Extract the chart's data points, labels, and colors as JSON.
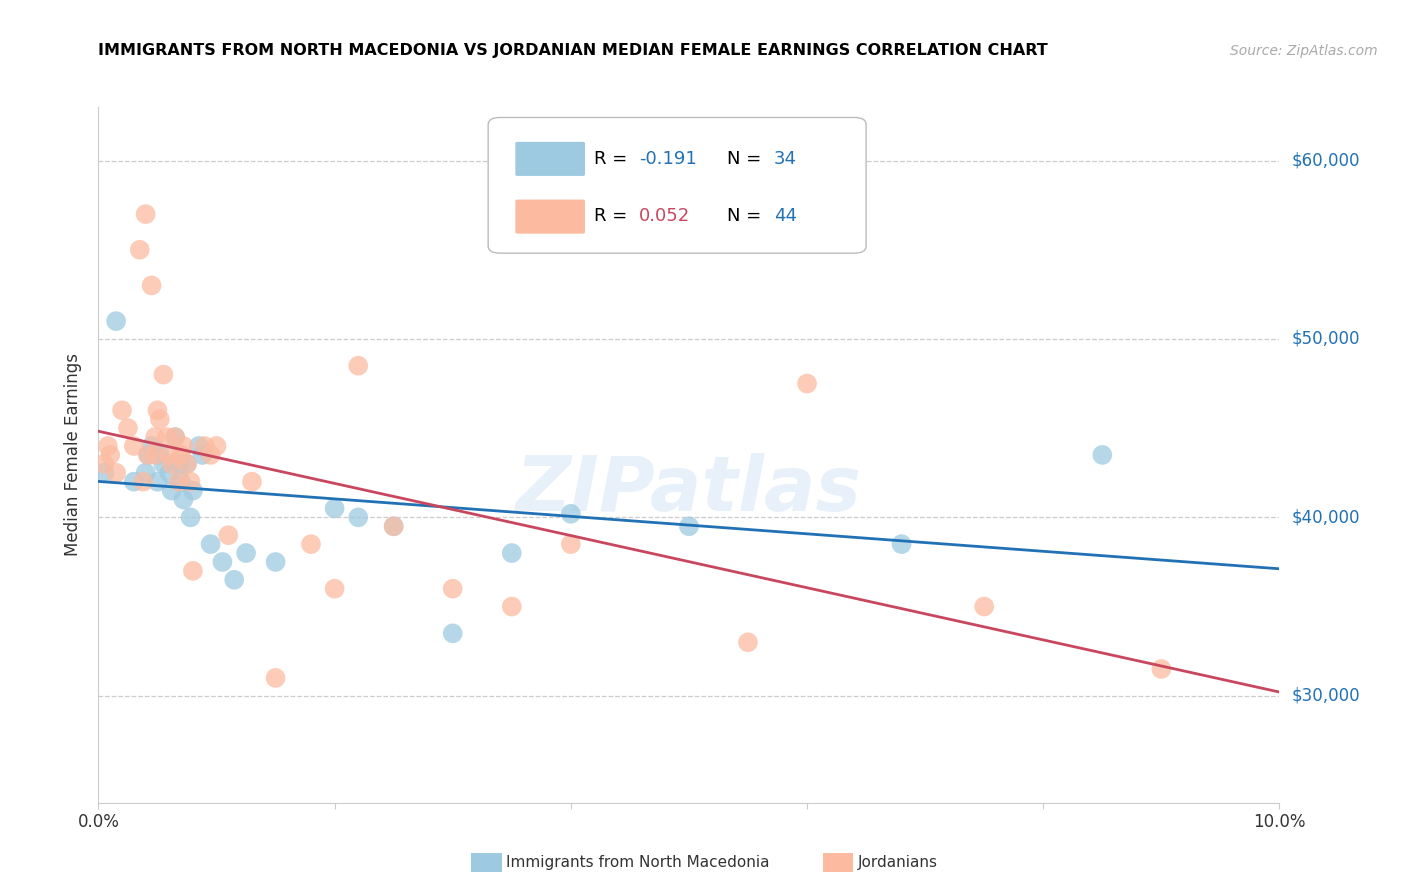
{
  "title": "IMMIGRANTS FROM NORTH MACEDONIA VS JORDANIAN MEDIAN FEMALE EARNINGS CORRELATION CHART",
  "source": "Source: ZipAtlas.com",
  "ylabel": "Median Female Earnings",
  "y_ticks": [
    30000,
    40000,
    50000,
    60000
  ],
  "y_tick_labels": [
    "$30,000",
    "$40,000",
    "$50,000",
    "$60,000"
  ],
  "x_min": 0.0,
  "x_max": 10.0,
  "y_min": 24000,
  "y_max": 63000,
  "blue_R": -0.191,
  "blue_N": 34,
  "pink_R": 0.052,
  "pink_N": 44,
  "blue_dot_color": "#9ecae1",
  "pink_dot_color": "#fcbba1",
  "blue_line_color": "#2171b5",
  "pink_line_color": "#c9475e",
  "watermark": "ZIPatlas",
  "blue_scatter_x": [
    0.05,
    0.15,
    0.4,
    0.42,
    0.45,
    0.5,
    0.52,
    0.55,
    0.6,
    0.62,
    0.65,
    0.68,
    0.7,
    0.72,
    0.75,
    0.78,
    0.8,
    0.85,
    0.88,
    0.95,
    1.05,
    1.15,
    1.25,
    1.5,
    2.0,
    2.2,
    2.5,
    3.0,
    3.5,
    4.0,
    5.0,
    6.8,
    8.5,
    0.3
  ],
  "blue_scatter_y": [
    42500,
    51000,
    42500,
    43500,
    44000,
    42000,
    43500,
    43000,
    42500,
    41500,
    44500,
    43000,
    42000,
    41000,
    43000,
    40000,
    41500,
    44000,
    43500,
    38500,
    37500,
    36500,
    38000,
    37500,
    40500,
    40000,
    39500,
    33500,
    38000,
    40200,
    39500,
    38500,
    43500,
    42000
  ],
  "pink_scatter_x": [
    0.05,
    0.08,
    0.1,
    0.15,
    0.2,
    0.25,
    0.3,
    0.35,
    0.38,
    0.4,
    0.45,
    0.48,
    0.5,
    0.52,
    0.55,
    0.58,
    0.6,
    0.62,
    0.65,
    0.68,
    0.7,
    0.72,
    0.75,
    0.78,
    0.8,
    0.9,
    0.95,
    1.0,
    1.1,
    1.3,
    1.5,
    1.8,
    2.0,
    2.2,
    2.5,
    3.0,
    3.5,
    4.0,
    5.5,
    6.0,
    7.5,
    9.0,
    0.42,
    0.48
  ],
  "pink_scatter_y": [
    43000,
    44000,
    43500,
    42500,
    46000,
    45000,
    44000,
    55000,
    42000,
    57000,
    53000,
    43500,
    46000,
    45500,
    48000,
    44500,
    43500,
    43000,
    44500,
    42000,
    43500,
    44000,
    43000,
    42000,
    37000,
    44000,
    43500,
    44000,
    39000,
    42000,
    31000,
    38500,
    36000,
    48500,
    39500,
    36000,
    35000,
    38500,
    33000,
    47500,
    35000,
    31500,
    43500,
    44500
  ]
}
